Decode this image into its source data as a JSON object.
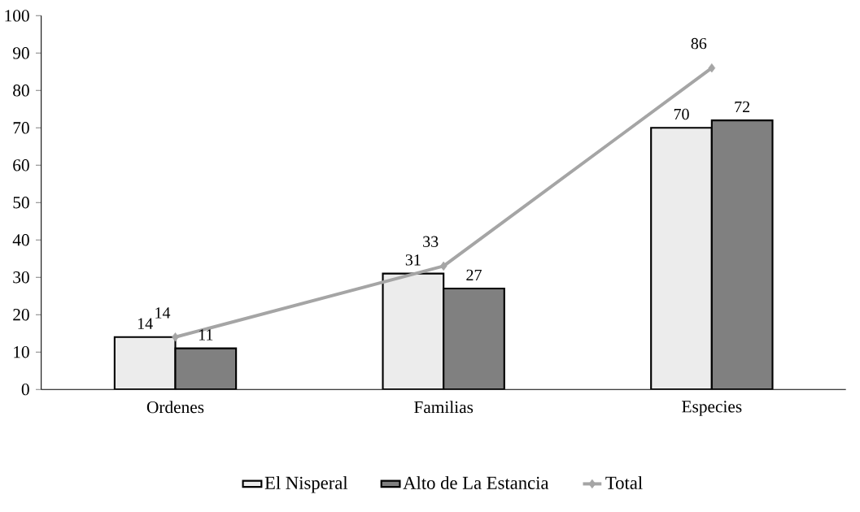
{
  "chart_data": {
    "type": "bar",
    "categories": [
      "Ordenes",
      "Familias",
      "Especies"
    ],
    "series": [
      {
        "name": "El Nisperal",
        "type": "bar",
        "color": "#ececec",
        "values": [
          14,
          31,
          70
        ]
      },
      {
        "name": "Alto de La Estancia",
        "type": "bar",
        "color": "#808080",
        "values": [
          11,
          27,
          72
        ]
      },
      {
        "name": "Total",
        "type": "line",
        "color": "#a5a5a5",
        "marker": "diamond",
        "line_style": "solid",
        "values": [
          14,
          33,
          86
        ]
      }
    ],
    "ylim": [
      0,
      100
    ],
    "yticks": [
      0,
      10,
      20,
      30,
      40,
      50,
      60,
      70,
      80,
      90,
      100
    ],
    "data_labels": true,
    "grid": false,
    "legend": "bottom"
  }
}
